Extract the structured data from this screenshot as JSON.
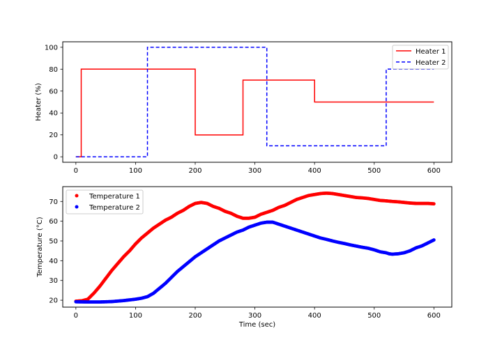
{
  "chart_data": [
    {
      "type": "line",
      "title": "",
      "xlabel": "",
      "ylabel": "Heater (%)",
      "xlim": [
        -22,
        630
      ],
      "ylim": [
        -5,
        105
      ],
      "xticks": [
        0,
        100,
        200,
        300,
        400,
        500,
        600
      ],
      "yticks": [
        0,
        20,
        40,
        60,
        80,
        100
      ],
      "grid": false,
      "legend_position": "top-right",
      "series": [
        {
          "name": "Heater 1",
          "color": "#ff0000",
          "style": "solid",
          "points": [
            [
              0,
              0
            ],
            [
              9,
              0
            ],
            [
              9,
              80
            ],
            [
              200,
              80
            ],
            [
              200,
              20
            ],
            [
              280,
              20
            ],
            [
              280,
              70
            ],
            [
              400,
              70
            ],
            [
              400,
              50
            ],
            [
              600,
              50
            ]
          ]
        },
        {
          "name": "Heater 2",
          "color": "#0000ff",
          "style": "dashed",
          "points": [
            [
              0,
              0
            ],
            [
              120,
              0
            ],
            [
              120,
              100
            ],
            [
              320,
              100
            ],
            [
              320,
              10
            ],
            [
              520,
              10
            ],
            [
              520,
              80
            ],
            [
              600,
              80
            ]
          ]
        }
      ]
    },
    {
      "type": "scatter",
      "title": "",
      "xlabel": "Time (sec)",
      "ylabel": "Temperature (°C)",
      "xlim": [
        -22,
        630
      ],
      "ylim": [
        16.5,
        77.5
      ],
      "xticks": [
        0,
        100,
        200,
        300,
        400,
        500,
        600
      ],
      "yticks": [
        20,
        30,
        40,
        50,
        60,
        70
      ],
      "grid": false,
      "legend_position": "top-left",
      "series": [
        {
          "name": "Temperature 1",
          "color": "#ff0000",
          "points": [
            [
              0,
              19.5
            ],
            [
              10,
              19.7
            ],
            [
              20,
              20.5
            ],
            [
              30,
              23.5
            ],
            [
              40,
              27
            ],
            [
              50,
              31
            ],
            [
              60,
              35
            ],
            [
              70,
              38.5
            ],
            [
              80,
              42
            ],
            [
              90,
              45
            ],
            [
              100,
              48.5
            ],
            [
              110,
              51.5
            ],
            [
              120,
              54
            ],
            [
              130,
              56.5
            ],
            [
              140,
              58.5
            ],
            [
              150,
              60.5
            ],
            [
              160,
              62
            ],
            [
              170,
              64
            ],
            [
              180,
              65.5
            ],
            [
              190,
              67.5
            ],
            [
              200,
              69
            ],
            [
              210,
              69.5
            ],
            [
              220,
              69
            ],
            [
              230,
              67.5
            ],
            [
              240,
              66.5
            ],
            [
              250,
              65
            ],
            [
              260,
              64
            ],
            [
              270,
              62.5
            ],
            [
              280,
              61.5
            ],
            [
              290,
              61.5
            ],
            [
              300,
              62
            ],
            [
              310,
              63.5
            ],
            [
              320,
              64.5
            ],
            [
              330,
              65.5
            ],
            [
              340,
              67
            ],
            [
              350,
              68
            ],
            [
              360,
              69.5
            ],
            [
              370,
              71
            ],
            [
              380,
              72
            ],
            [
              390,
              73
            ],
            [
              400,
              73.5
            ],
            [
              410,
              74
            ],
            [
              420,
              74.2
            ],
            [
              430,
              74
            ],
            [
              440,
              73.5
            ],
            [
              450,
              73
            ],
            [
              460,
              72.5
            ],
            [
              470,
              72
            ],
            [
              480,
              71.8
            ],
            [
              490,
              71.5
            ],
            [
              500,
              71
            ],
            [
              510,
              70.5
            ],
            [
              520,
              70.3
            ],
            [
              530,
              70
            ],
            [
              540,
              69.8
            ],
            [
              550,
              69.5
            ],
            [
              560,
              69.2
            ],
            [
              570,
              69
            ],
            [
              580,
              69
            ],
            [
              590,
              69
            ],
            [
              600,
              68.8
            ]
          ]
        },
        {
          "name": "Temperature 2",
          "color": "#0000ff",
          "points": [
            [
              0,
              19.2
            ],
            [
              20,
              19.1
            ],
            [
              40,
              19.1
            ],
            [
              60,
              19.3
            ],
            [
              80,
              19.8
            ],
            [
              100,
              20.5
            ],
            [
              110,
              21
            ],
            [
              120,
              21.8
            ],
            [
              130,
              23.5
            ],
            [
              140,
              26
            ],
            [
              150,
              28.5
            ],
            [
              160,
              31.5
            ],
            [
              170,
              34.5
            ],
            [
              180,
              37
            ],
            [
              190,
              39.5
            ],
            [
              200,
              42
            ],
            [
              210,
              44
            ],
            [
              220,
              46
            ],
            [
              230,
              48
            ],
            [
              240,
              50
            ],
            [
              250,
              51.5
            ],
            [
              260,
              53
            ],
            [
              270,
              54.5
            ],
            [
              280,
              55.5
            ],
            [
              290,
              57
            ],
            [
              300,
              58
            ],
            [
              310,
              59
            ],
            [
              320,
              59.5
            ],
            [
              330,
              59.5
            ],
            [
              340,
              58.5
            ],
            [
              350,
              57.5
            ],
            [
              360,
              56.5
            ],
            [
              370,
              55.5
            ],
            [
              380,
              54.5
            ],
            [
              390,
              53.5
            ],
            [
              400,
              52.5
            ],
            [
              410,
              51.5
            ],
            [
              420,
              50.8
            ],
            [
              430,
              50
            ],
            [
              440,
              49.3
            ],
            [
              450,
              48.7
            ],
            [
              460,
              48
            ],
            [
              470,
              47.4
            ],
            [
              480,
              46.8
            ],
            [
              490,
              46.3
            ],
            [
              500,
              45.5
            ],
            [
              510,
              44.5
            ],
            [
              520,
              44
            ],
            [
              525,
              43.5
            ],
            [
              530,
              43.3
            ],
            [
              540,
              43.5
            ],
            [
              550,
              44
            ],
            [
              560,
              45
            ],
            [
              570,
              46.5
            ],
            [
              580,
              47.5
            ],
            [
              590,
              49
            ],
            [
              600,
              50.5
            ]
          ]
        }
      ]
    }
  ]
}
